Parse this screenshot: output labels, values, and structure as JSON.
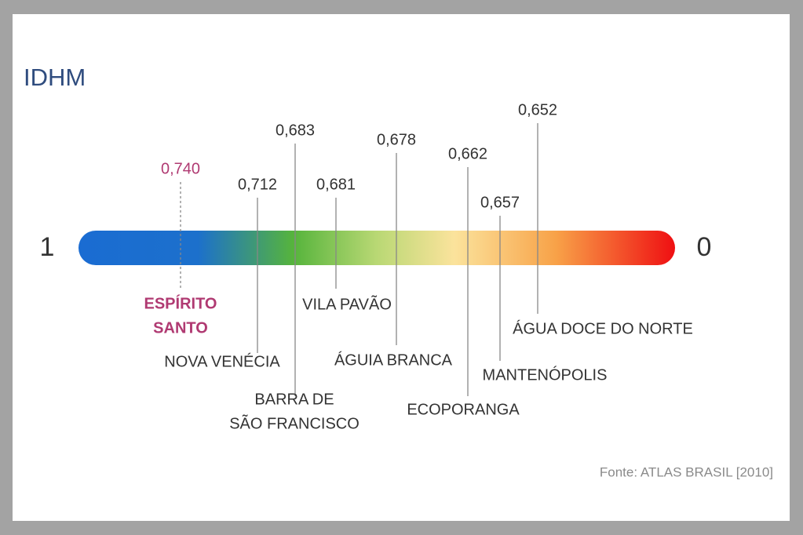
{
  "title": "IDHM",
  "scale": {
    "left_label": "1",
    "right_label": "0"
  },
  "items": [
    {
      "name_lines": [
        "ESPÍRITO",
        "SANTO"
      ],
      "value": "0,740",
      "highlight": true
    },
    {
      "name_lines": [
        "NOVA VENÉCIA"
      ],
      "value": "0,712"
    },
    {
      "name_lines": [
        "BARRA DE",
        "SÃO FRANCISCO"
      ],
      "value": "0,683"
    },
    {
      "name_lines": [
        "VILA PAVÃO"
      ],
      "value": "0,681"
    },
    {
      "name_lines": [
        "ÁGUIA BRANCA"
      ],
      "value": "0,678"
    },
    {
      "name_lines": [
        "ECOPORANGA"
      ],
      "value": "0,662"
    },
    {
      "name_lines": [
        "MANTENÓPOLIS"
      ],
      "value": "0,657"
    },
    {
      "name_lines": [
        "ÁGUA DOCE DO NORTE"
      ],
      "value": "0,652"
    }
  ],
  "source": "Fonte: ATLAS BRASIL [2010]"
}
